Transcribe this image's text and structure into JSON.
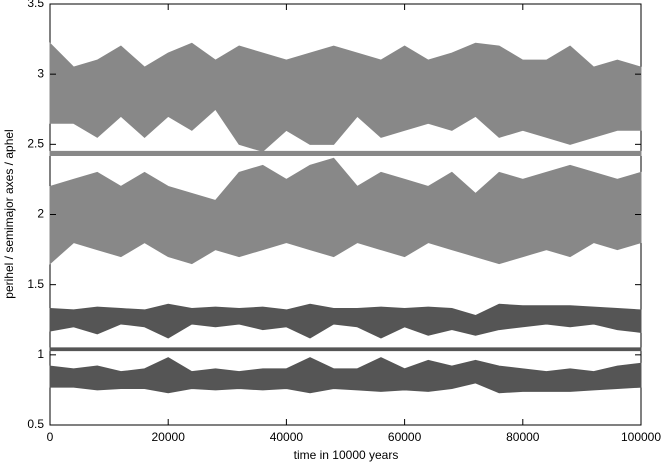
{
  "chart_data": {
    "type": "band",
    "xlabel": "time in 10000 years",
    "ylabel": "perihel / semimajor axes / aphel",
    "x": [
      0,
      4000,
      8000,
      12000,
      16000,
      20000,
      24000,
      28000,
      32000,
      36000,
      40000,
      44000,
      48000,
      52000,
      56000,
      60000,
      64000,
      68000,
      72000,
      76000,
      80000,
      84000,
      88000,
      92000,
      96000,
      100000
    ],
    "series": [
      {
        "color": "#888888",
        "high": [
          3.22,
          3.05,
          3.1,
          3.2,
          3.05,
          3.15,
          3.22,
          3.1,
          3.2,
          3.15,
          3.1,
          3.15,
          3.2,
          3.15,
          3.1,
          3.2,
          3.1,
          3.15,
          3.22,
          3.2,
          3.1,
          3.1,
          3.2,
          3.05,
          3.1,
          3.05
        ],
        "low": [
          2.65,
          2.65,
          2.55,
          2.7,
          2.55,
          2.7,
          2.6,
          2.75,
          2.5,
          2.45,
          2.6,
          2.5,
          2.5,
          2.7,
          2.55,
          2.6,
          2.65,
          2.6,
          2.7,
          2.55,
          2.6,
          2.55,
          2.5,
          2.55,
          2.6,
          2.6
        ]
      },
      {
        "color": "#888888",
        "high": [
          2.45,
          2.45,
          2.45,
          2.45,
          2.45,
          2.45,
          2.45,
          2.45,
          2.45,
          2.45,
          2.45,
          2.45,
          2.45,
          2.45,
          2.45,
          2.45,
          2.45,
          2.45,
          2.45,
          2.45,
          2.45,
          2.45,
          2.45,
          2.45,
          2.45,
          2.45
        ],
        "low": [
          2.42,
          2.42,
          2.42,
          2.42,
          2.42,
          2.42,
          2.42,
          2.42,
          2.42,
          2.42,
          2.42,
          2.42,
          2.42,
          2.42,
          2.42,
          2.42,
          2.42,
          2.42,
          2.42,
          2.42,
          2.42,
          2.42,
          2.42,
          2.42,
          2.42,
          2.42
        ]
      },
      {
        "color": "#888888",
        "high": [
          2.2,
          2.25,
          2.3,
          2.2,
          2.3,
          2.2,
          2.15,
          2.1,
          2.3,
          2.35,
          2.25,
          2.35,
          2.4,
          2.2,
          2.3,
          2.25,
          2.2,
          2.3,
          2.15,
          2.3,
          2.25,
          2.3,
          2.35,
          2.3,
          2.25,
          2.3
        ],
        "low": [
          1.65,
          1.8,
          1.75,
          1.7,
          1.8,
          1.7,
          1.65,
          1.75,
          1.7,
          1.75,
          1.8,
          1.75,
          1.7,
          1.8,
          1.75,
          1.7,
          1.8,
          1.75,
          1.7,
          1.65,
          1.7,
          1.75,
          1.7,
          1.8,
          1.75,
          1.8
        ]
      },
      {
        "color": "#555555",
        "high": [
          1.33,
          1.32,
          1.34,
          1.33,
          1.32,
          1.36,
          1.33,
          1.34,
          1.33,
          1.34,
          1.32,
          1.36,
          1.33,
          1.33,
          1.34,
          1.33,
          1.34,
          1.33,
          1.28,
          1.36,
          1.35,
          1.35,
          1.35,
          1.34,
          1.33,
          1.32
        ],
        "low": [
          1.17,
          1.2,
          1.15,
          1.22,
          1.2,
          1.12,
          1.22,
          1.2,
          1.22,
          1.18,
          1.2,
          1.12,
          1.22,
          1.2,
          1.12,
          1.2,
          1.14,
          1.18,
          1.14,
          1.18,
          1.2,
          1.22,
          1.2,
          1.22,
          1.18,
          1.16
        ]
      },
      {
        "color": "#555555",
        "high": [
          1.05,
          1.05,
          1.05,
          1.05,
          1.05,
          1.05,
          1.05,
          1.05,
          1.05,
          1.05,
          1.05,
          1.05,
          1.05,
          1.05,
          1.05,
          1.05,
          1.05,
          1.05,
          1.05,
          1.05,
          1.05,
          1.05,
          1.05,
          1.05,
          1.05,
          1.05
        ],
        "low": [
          1.03,
          1.03,
          1.03,
          1.03,
          1.03,
          1.03,
          1.03,
          1.03,
          1.03,
          1.03,
          1.03,
          1.03,
          1.03,
          1.03,
          1.03,
          1.03,
          1.03,
          1.03,
          1.03,
          1.03,
          1.03,
          1.03,
          1.03,
          1.03,
          1.03,
          1.03
        ]
      },
      {
        "color": "#555555",
        "high": [
          0.92,
          0.9,
          0.92,
          0.88,
          0.9,
          0.98,
          0.88,
          0.9,
          0.88,
          0.9,
          0.9,
          0.98,
          0.9,
          0.9,
          0.98,
          0.9,
          0.96,
          0.92,
          0.96,
          0.92,
          0.9,
          0.88,
          0.9,
          0.88,
          0.92,
          0.94
        ],
        "low": [
          0.77,
          0.77,
          0.75,
          0.76,
          0.76,
          0.73,
          0.76,
          0.75,
          0.76,
          0.75,
          0.76,
          0.73,
          0.76,
          0.75,
          0.74,
          0.75,
          0.74,
          0.76,
          0.8,
          0.73,
          0.74,
          0.74,
          0.74,
          0.75,
          0.76,
          0.77
        ]
      }
    ],
    "xlim": [
      0,
      100000
    ],
    "xticks": [
      0,
      20000,
      40000,
      60000,
      80000,
      100000
    ],
    "ylim": [
      0.5,
      3.5
    ],
    "yticks": [
      0.5,
      1,
      1.5,
      2,
      2.5,
      3,
      3.5
    ]
  }
}
